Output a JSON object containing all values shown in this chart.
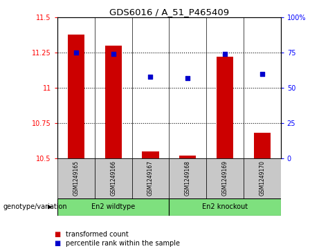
{
  "title": "GDS6016 / A_51_P465409",
  "samples": [
    "GSM1249165",
    "GSM1249166",
    "GSM1249167",
    "GSM1249168",
    "GSM1249169",
    "GSM1249170"
  ],
  "transformed_counts": [
    11.38,
    11.3,
    10.55,
    10.52,
    11.22,
    10.68
  ],
  "percentile_ranks": [
    75,
    74,
    58,
    57,
    74,
    60
  ],
  "ylim_left": [
    10.5,
    11.5
  ],
  "ylim_right": [
    0,
    100
  ],
  "yticks_left": [
    10.5,
    10.75,
    11.0,
    11.25,
    11.5
  ],
  "yticks_right": [
    0,
    25,
    50,
    75,
    100
  ],
  "ytick_labels_left": [
    "10.5",
    "10.75",
    "11",
    "11.25",
    "11.5"
  ],
  "ytick_labels_right": [
    "0",
    "25",
    "50",
    "75",
    "100%"
  ],
  "group1_label": "En2 wildtype",
  "group1_color": "#7EE07E",
  "group2_label": "En2 knockout",
  "group2_color": "#7EE07E",
  "bar_color": "#CC0000",
  "dot_color": "#0000CC",
  "bar_bottom": 10.5,
  "sample_bg": "#C8C8C8",
  "plot_bg": "#FFFFFF",
  "genotype_label": "genotype/variation",
  "legend_items": [
    "transformed count",
    "percentile rank within the sample"
  ]
}
